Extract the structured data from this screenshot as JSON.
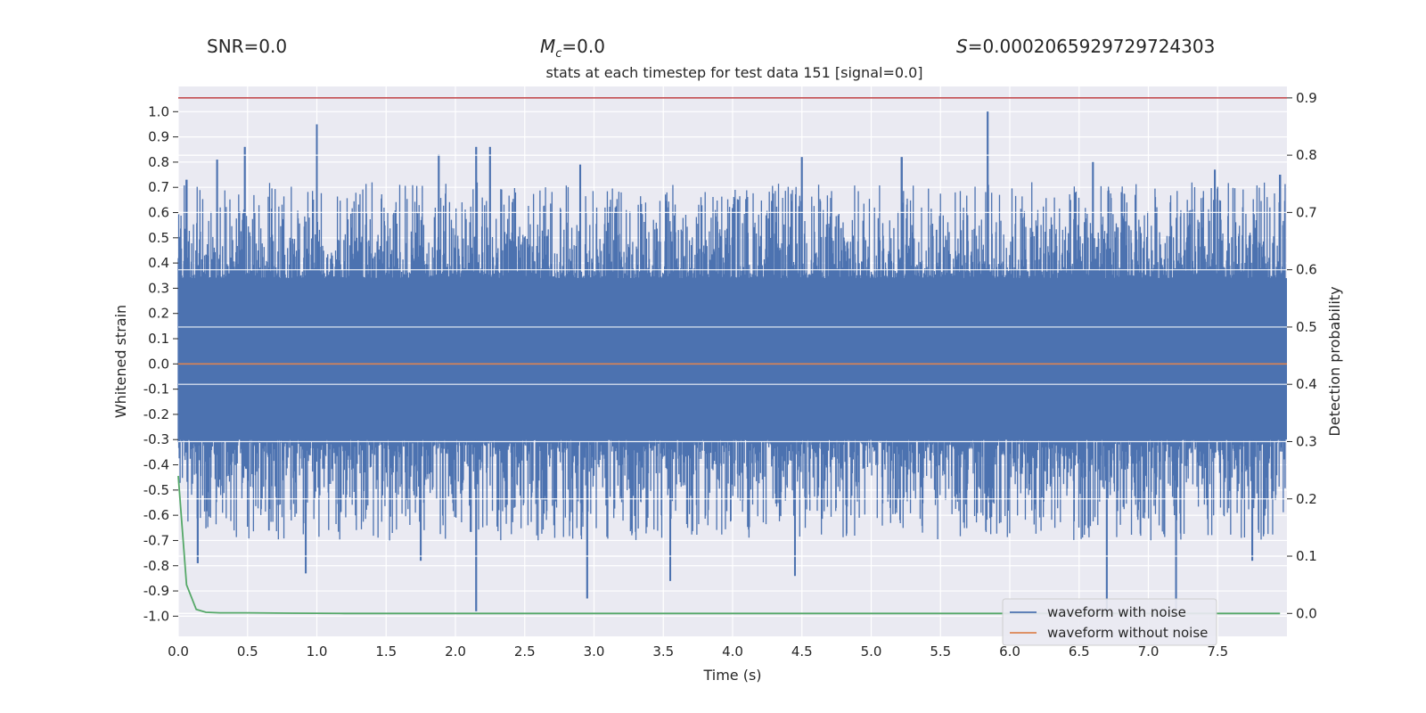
{
  "header": {
    "snr_label": "SNR=0.0",
    "mc_symbol": "M",
    "mc_subscript": "c",
    "mc_value": "=0.0",
    "s_symbol": "S",
    "s_value": "=0.0002065929729724303"
  },
  "chart_data": {
    "type": "line",
    "title": "stats at each timestep for test data 151 [signal=0.0]",
    "xlabel": "Time (s)",
    "ylabel": "Whitened strain",
    "ylabel_right": "Detection probability",
    "xlim": [
      0.0,
      8.0
    ],
    "ylim": [
      -1.08,
      1.1
    ],
    "ylim_right": [
      -0.04,
      0.92
    ],
    "x_ticks": [
      "0.0",
      "0.5",
      "1.0",
      "1.5",
      "2.0",
      "2.5",
      "3.0",
      "3.5",
      "4.0",
      "4.5",
      "5.0",
      "5.5",
      "6.0",
      "6.5",
      "7.0",
      "7.5"
    ],
    "y_ticks": [
      "1.0",
      "0.9",
      "0.8",
      "0.7",
      "0.6",
      "0.5",
      "0.4",
      "0.3",
      "0.2",
      "0.1",
      "0.0",
      "-0.1",
      "-0.2",
      "-0.3",
      "-0.4",
      "-0.5",
      "-0.6",
      "-0.7",
      "-0.8",
      "-0.9",
      "-1.0"
    ],
    "y_right_ticks": [
      "0.9",
      "0.8",
      "0.7",
      "0.6",
      "0.5",
      "0.4",
      "0.3",
      "0.2",
      "0.1",
      "0.0"
    ],
    "threshold": {
      "value": 0.9,
      "axis": "right",
      "color": "#c44e52"
    },
    "series": [
      {
        "name": "waveform with noise",
        "color": "#4c72b0",
        "axis": "left",
        "note": "dense noisy whitened strain, envelope approx ±0.4 with peaks to ±1.0",
        "peaks_pos": [
          [
            0.06,
            0.73
          ],
          [
            0.28,
            0.81
          ],
          [
            0.48,
            0.86
          ],
          [
            1.0,
            0.95
          ],
          [
            1.88,
            0.83
          ],
          [
            2.15,
            0.86
          ],
          [
            2.25,
            0.86
          ],
          [
            2.9,
            0.79
          ],
          [
            4.5,
            0.82
          ],
          [
            5.22,
            0.82
          ],
          [
            5.84,
            1.0
          ],
          [
            6.6,
            0.8
          ],
          [
            7.48,
            0.77
          ],
          [
            7.95,
            0.75
          ]
        ],
        "peaks_neg": [
          [
            0.14,
            -0.79
          ],
          [
            0.92,
            -0.83
          ],
          [
            1.75,
            -0.78
          ],
          [
            2.15,
            -0.98
          ],
          [
            2.95,
            -0.93
          ],
          [
            3.55,
            -0.86
          ],
          [
            4.45,
            -0.84
          ],
          [
            6.7,
            -0.98
          ],
          [
            7.2,
            -0.97
          ],
          [
            7.75,
            -0.78
          ]
        ]
      },
      {
        "name": "waveform without noise",
        "color": "#dd8452",
        "axis": "left",
        "x": [
          0.0,
          8.0
        ],
        "y": [
          0.0,
          0.0
        ]
      },
      {
        "name": "detection probability",
        "color": "#55a868",
        "axis": "right",
        "x": [
          0.0,
          0.06,
          0.13,
          0.2,
          0.3,
          0.5,
          0.8,
          1.2,
          2.0,
          4.0,
          6.0,
          7.95
        ],
        "y": [
          0.24,
          0.05,
          0.007,
          0.002,
          0.001,
          0.001,
          0.0005,
          0.0,
          0.0,
          0.0,
          0.0,
          0.0
        ]
      }
    ],
    "legend": {
      "position": "lower-right",
      "entries": [
        "waveform with noise",
        "waveform without noise"
      ]
    },
    "grid": true
  }
}
